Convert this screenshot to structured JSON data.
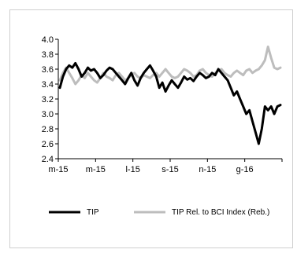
{
  "chart_data": {
    "type": "line",
    "title": "",
    "xlabel": "",
    "ylabel": "",
    "ylim": [
      2.4,
      4.0
    ],
    "yticks": [
      "4.0",
      "3.8",
      "3.6",
      "3.4",
      "3.2",
      "3.0",
      "2.8",
      "2.6",
      "2.4"
    ],
    "ytick_values": [
      4.0,
      3.8,
      3.6,
      3.4,
      3.2,
      3.0,
      2.8,
      2.6,
      2.4
    ],
    "xticks": [
      "m-15",
      "m-15",
      "l-15",
      "s-15",
      "n-15",
      "g-16"
    ],
    "grid": false,
    "legend_position": "bottom",
    "series": [
      {
        "name": "TIP",
        "color": "#000000",
        "values": [
          3.35,
          3.5,
          3.6,
          3.65,
          3.62,
          3.68,
          3.6,
          3.5,
          3.55,
          3.62,
          3.58,
          3.6,
          3.55,
          3.48,
          3.52,
          3.58,
          3.62,
          3.6,
          3.55,
          3.5,
          3.45,
          3.4,
          3.48,
          3.55,
          3.45,
          3.38,
          3.48,
          3.55,
          3.6,
          3.65,
          3.58,
          3.5,
          3.35,
          3.42,
          3.3,
          3.38,
          3.45,
          3.4,
          3.35,
          3.42,
          3.5,
          3.46,
          3.48,
          3.44,
          3.5,
          3.55,
          3.52,
          3.48,
          3.5,
          3.55,
          3.52,
          3.6,
          3.55,
          3.5,
          3.45,
          3.35,
          3.25,
          3.3,
          3.2,
          3.1,
          3.0,
          3.05,
          2.9,
          2.75,
          2.6,
          2.8,
          3.1,
          3.05,
          3.1,
          3.0,
          3.1,
          3.12
        ]
      },
      {
        "name": "TIP Rel. to BCI Index (Reb.)",
        "color": "#bdbdbd",
        "values": [
          3.45,
          3.55,
          3.62,
          3.55,
          3.48,
          3.4,
          3.45,
          3.52,
          3.48,
          3.55,
          3.5,
          3.45,
          3.42,
          3.48,
          3.55,
          3.5,
          3.48,
          3.45,
          3.52,
          3.55,
          3.5,
          3.45,
          3.48,
          3.52,
          3.55,
          3.5,
          3.48,
          3.52,
          3.5,
          3.48,
          3.52,
          3.55,
          3.5,
          3.55,
          3.6,
          3.55,
          3.5,
          3.48,
          3.5,
          3.55,
          3.6,
          3.58,
          3.55,
          3.5,
          3.52,
          3.58,
          3.6,
          3.55,
          3.52,
          3.5,
          3.55,
          3.58,
          3.6,
          3.55,
          3.52,
          3.5,
          3.55,
          3.58,
          3.55,
          3.52,
          3.58,
          3.6,
          3.55,
          3.58,
          3.6,
          3.65,
          3.72,
          3.9,
          3.75,
          3.62,
          3.6,
          3.62
        ]
      }
    ]
  }
}
